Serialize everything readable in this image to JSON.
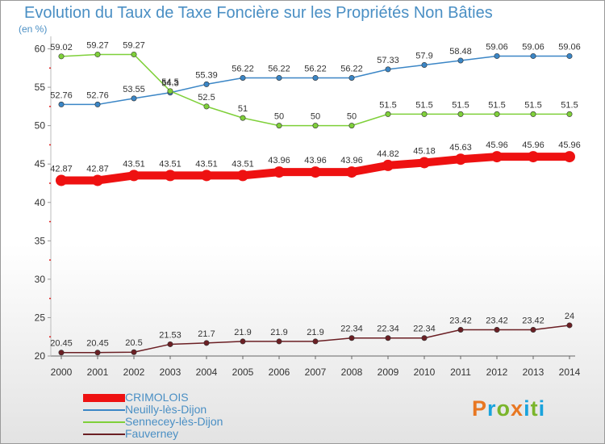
{
  "title": "Evolution du Taux de Taxe Foncière sur les Propriétés Non Bâties",
  "unit_label": "(en %)",
  "brand": {
    "letters": [
      "P",
      "r",
      "o",
      "x",
      "i",
      "t",
      "i"
    ],
    "colors": [
      "#e87722",
      "#1aa3dc",
      "#7ab52b",
      "#e87722",
      "#1aa3dc",
      "#7ab52b",
      "#1aa3dc"
    ]
  },
  "chart_data": {
    "type": "line",
    "title": "Evolution du Taux de Taxe Foncière sur les Propriétés Non Bâties",
    "ylabel": "(en %)",
    "xlabel": "",
    "x": [
      "2000",
      "2001",
      "2002",
      "2003",
      "2004",
      "2005",
      "2006",
      "2007",
      "2008",
      "2009",
      "2010",
      "2011",
      "2012",
      "2013",
      "2014"
    ],
    "ylim": [
      20,
      61
    ],
    "yticks": [
      20,
      25,
      30,
      35,
      40,
      45,
      50,
      55,
      60
    ],
    "grid": false,
    "legend_position": "bottom-left",
    "series": [
      {
        "name": "CRIMOLOIS",
        "color": "#ee1111",
        "emphasis": true,
        "values": [
          42.87,
          42.87,
          43.51,
          43.51,
          43.51,
          43.51,
          43.96,
          43.96,
          43.96,
          44.82,
          45.18,
          45.63,
          45.96,
          45.96,
          45.96
        ],
        "labels": [
          "42.87",
          "42.87",
          "43.51",
          "43.51",
          "43.51",
          "43.51",
          "43.96",
          "43.96",
          "43.96",
          "44.82",
          "45.18",
          "45.63",
          "45.96",
          "45.96",
          "45.96"
        ]
      },
      {
        "name": "Neuilly-lès-Dijon",
        "color": "#3b86c6",
        "emphasis": false,
        "values": [
          52.76,
          52.76,
          53.55,
          54.3,
          55.39,
          56.22,
          56.22,
          56.22,
          56.22,
          57.33,
          57.9,
          58.48,
          59.06,
          59.06,
          59.06
        ],
        "labels": [
          "52.76",
          "52.76",
          "53.55",
          "54.3",
          "55.39",
          "56.22",
          "56.22",
          "56.22",
          "56.22",
          "57.33",
          "57.9",
          "58.48",
          "59.06",
          "59.06",
          "59.06"
        ]
      },
      {
        "name": "Sennecey-lès-Dijon",
        "color": "#7fd03a",
        "emphasis": false,
        "values": [
          59.02,
          59.27,
          59.27,
          54.5,
          52.5,
          51,
          50,
          50,
          50,
          51.5,
          51.5,
          51.5,
          51.5,
          51.5,
          51.5
        ],
        "labels": [
          "59.02",
          "59.27",
          "59.27",
          "54.5",
          "52.5",
          "51",
          "50",
          "50",
          "50",
          "51.5",
          "51.5",
          "51.5",
          "51.5",
          "51.5",
          "51.5"
        ]
      },
      {
        "name": "Fauverney",
        "color": "#6b1f24",
        "emphasis": false,
        "values": [
          20.45,
          20.45,
          20.5,
          21.53,
          21.7,
          21.9,
          21.9,
          21.9,
          22.34,
          22.34,
          22.34,
          23.42,
          23.42,
          23.42,
          24
        ],
        "labels": [
          "20.45",
          "20.45",
          "20.5",
          "21.53",
          "21.7",
          "21.9",
          "21.9",
          "21.9",
          "22.34",
          "22.34",
          "22.34",
          "23.42",
          "23.42",
          "23.42",
          "24"
        ]
      }
    ]
  }
}
